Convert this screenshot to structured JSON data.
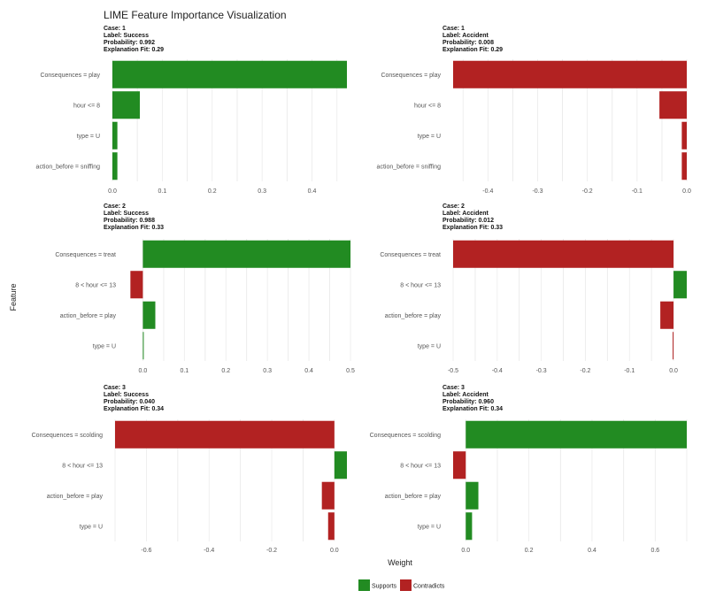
{
  "chart_data": {
    "type": "bar",
    "title": "LIME Feature Importance Visualization",
    "xlabel": "Weight",
    "ylabel": "Feature",
    "grid": true,
    "legend": {
      "position": "bottom",
      "items": [
        {
          "label": "Supports",
          "color": "#228b22"
        },
        {
          "label": "Contradicts",
          "color": "#b22222"
        }
      ]
    },
    "colors": {
      "supports": "#228b22",
      "contradicts": "#b22222"
    },
    "panels": [
      {
        "header": [
          "Case: 1",
          "Label: Success",
          "Probability: 0.992",
          "Explanation Fit: 0.29"
        ],
        "xlim": [
          0,
          0.47
        ],
        "xticks": [
          0.0,
          0.1,
          0.2,
          0.3,
          0.4
        ],
        "tick_labels": [
          "0.0",
          "0.1",
          "0.2",
          "0.3",
          "0.4"
        ],
        "features": [
          "Consequences = play",
          "hour <= 8",
          "type = U",
          "action_before = sniffing"
        ],
        "values": [
          0.47,
          0.055,
          0.01,
          0.01
        ]
      },
      {
        "header": [
          "Case: 1",
          "Label: Accident",
          "Probability: 0.008",
          "Explanation Fit: 0.29"
        ],
        "xlim": [
          -0.47,
          0
        ],
        "xticks": [
          -0.4,
          -0.3,
          -0.2,
          -0.1,
          0.0
        ],
        "tick_labels": [
          "-0.4",
          "-0.3",
          "-0.2",
          "-0.1",
          "0.0"
        ],
        "features": [
          "Consequences = play",
          "hour <= 8",
          "type = U",
          "action_before = sniffing"
        ],
        "values": [
          -0.47,
          -0.055,
          -0.01,
          -0.01
        ]
      },
      {
        "header": [
          "Case: 2",
          "Label: Success",
          "Probability: 0.988",
          "Explanation Fit: 0.33"
        ],
        "xlim": [
          -0.035,
          0.5
        ],
        "xticks": [
          0.0,
          0.1,
          0.2,
          0.3,
          0.4,
          0.5
        ],
        "tick_labels": [
          "0.0",
          "0.1",
          "0.2",
          "0.3",
          "0.4",
          "0.5"
        ],
        "features": [
          "Consequences = treat",
          "8 < hour <= 13",
          "action_before = play",
          "type = U"
        ],
        "values": [
          0.5,
          -0.03,
          0.03,
          0.002
        ]
      },
      {
        "header": [
          "Case: 2",
          "Label: Accident",
          "Probability: 0.012",
          "Explanation Fit: 0.33"
        ],
        "xlim": [
          -0.5,
          0.03
        ],
        "xticks": [
          -0.5,
          -0.4,
          -0.3,
          -0.2,
          -0.1,
          0.0
        ],
        "tick_labels": [
          "-0.5",
          "-0.4",
          "-0.3",
          "-0.2",
          "-0.1",
          "0.0"
        ],
        "features": [
          "Consequences = treat",
          "8 < hour <= 13",
          "action_before = play",
          "type = U"
        ],
        "values": [
          -0.5,
          0.03,
          -0.03,
          -0.002
        ]
      },
      {
        "header": [
          "Case: 3",
          "Label: Success",
          "Probability: 0.040",
          "Explanation Fit: 0.34"
        ],
        "xlim": [
          -0.7,
          0.04
        ],
        "xticks": [
          -0.6,
          -0.4,
          -0.2,
          0.0
        ],
        "tick_labels": [
          "-0.6",
          "-0.4",
          "-0.2",
          "0.0"
        ],
        "features": [
          "Consequences = scolding",
          "8 < hour <= 13",
          "action_before = play",
          "type = U"
        ],
        "values": [
          -0.7,
          0.04,
          -0.04,
          -0.02
        ]
      },
      {
        "header": [
          "Case: 3",
          "Label: Accident",
          "Probability: 0.960",
          "Explanation Fit: 0.34"
        ],
        "xlim": [
          -0.04,
          0.7
        ],
        "xticks": [
          0.0,
          0.2,
          0.4,
          0.6
        ],
        "tick_labels": [
          "0.0",
          "0.2",
          "0.4",
          "0.6"
        ],
        "features": [
          "Consequences = scolding",
          "8 < hour <= 13",
          "action_before = play",
          "type = U"
        ],
        "values": [
          0.7,
          -0.04,
          0.04,
          0.02
        ]
      }
    ]
  }
}
